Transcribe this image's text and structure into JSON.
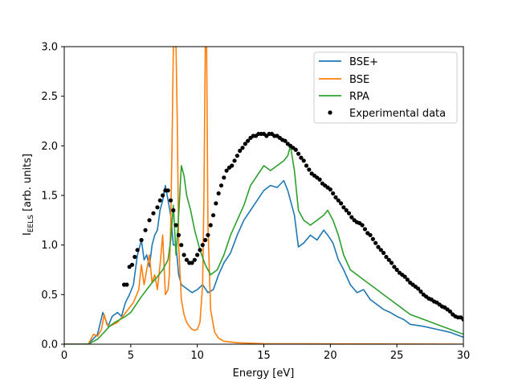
{
  "chart_data": {
    "type": "line",
    "xlabel": "Energy [eV]",
    "ylabel_main": "I",
    "ylabel_sub": "EELS",
    "ylabel_rest": " [arb. units]",
    "xlim": [
      0,
      30
    ],
    "ylim": [
      0,
      3.0
    ],
    "x_ticks": [
      0,
      5,
      10,
      15,
      20,
      25,
      30
    ],
    "x_tick_labels": [
      "0",
      "5",
      "10",
      "15",
      "20",
      "25",
      "30"
    ],
    "y_ticks": [
      0,
      0.5,
      1.0,
      1.5,
      2.0,
      2.5,
      3.0
    ],
    "y_tick_labels": [
      "0.0",
      "0.5",
      "1.0",
      "1.5",
      "2.0",
      "2.5",
      "3.0"
    ],
    "grid": false,
    "legend_position": "top-right",
    "series": [
      {
        "name": "BSE+",
        "style": "line",
        "color": "#1f77b4",
        "x": [
          0,
          1.8,
          2.5,
          2.9,
          3.1,
          3.3,
          3.6,
          4.0,
          4.3,
          4.6,
          4.9,
          5.2,
          5.5,
          5.8,
          6.0,
          6.2,
          6.4,
          6.6,
          6.8,
          7.0,
          7.2,
          7.4,
          7.6,
          7.8,
          8.0,
          8.2,
          8.4,
          8.6,
          8.8,
          9.0,
          9.3,
          9.6,
          10.0,
          10.4,
          10.8,
          11.2,
          11.6,
          12.0,
          12.5,
          13.0,
          13.5,
          14.0,
          14.5,
          15.0,
          15.5,
          16.0,
          16.5,
          16.8,
          17.0,
          17.3,
          17.6,
          18.0,
          18.5,
          19.0,
          19.5,
          19.8,
          20.2,
          20.6,
          21.0,
          21.5,
          22.0,
          22.5,
          23.0,
          23.5,
          24.0,
          24.5,
          25.0,
          25.5,
          26.0,
          27.0,
          28.0,
          29.0,
          30.0
        ],
        "y": [
          0,
          0,
          0.1,
          0.32,
          0.25,
          0.18,
          0.28,
          0.32,
          0.28,
          0.42,
          0.5,
          0.6,
          0.9,
          1.05,
          0.85,
          0.9,
          0.78,
          1.0,
          1.1,
          1.15,
          1.35,
          1.45,
          1.6,
          1.45,
          1.3,
          1.0,
          1.0,
          0.7,
          0.6,
          0.58,
          0.55,
          0.52,
          0.55,
          0.6,
          0.52,
          0.55,
          0.7,
          0.82,
          0.92,
          1.1,
          1.25,
          1.35,
          1.45,
          1.55,
          1.6,
          1.58,
          1.65,
          1.55,
          1.45,
          1.3,
          0.98,
          1.02,
          1.1,
          1.05,
          1.15,
          1.1,
          1.02,
          0.85,
          0.75,
          0.6,
          0.52,
          0.55,
          0.45,
          0.4,
          0.35,
          0.32,
          0.28,
          0.25,
          0.2,
          0.18,
          0.15,
          0.12,
          0.07
        ]
      },
      {
        "name": "BSE",
        "style": "line",
        "color": "#ff7f0e",
        "x": [
          0,
          1.8,
          2.2,
          2.5,
          2.8,
          3.0,
          3.2,
          3.4,
          3.7,
          4.0,
          4.4,
          4.8,
          5.2,
          5.6,
          5.8,
          6.0,
          6.2,
          6.4,
          6.6,
          6.8,
          7.0,
          7.2,
          7.4,
          7.6,
          7.8,
          7.9,
          8.0,
          8.1,
          8.2,
          8.3,
          8.4,
          8.5,
          8.6,
          8.8,
          9.0,
          9.2,
          9.4,
          9.6,
          9.8,
          10.0,
          10.2,
          10.4,
          10.5,
          10.6,
          10.7,
          10.8,
          11.0,
          11.3,
          11.6,
          12.0,
          13.0,
          14.0,
          15.0,
          30.0
        ],
        "y": [
          0,
          0,
          0.1,
          0.08,
          0.15,
          0.3,
          0.2,
          0.18,
          0.2,
          0.22,
          0.28,
          0.35,
          0.42,
          0.55,
          0.8,
          0.6,
          0.75,
          0.9,
          0.62,
          0.7,
          0.55,
          0.8,
          1.1,
          0.5,
          0.55,
          0.7,
          1.2,
          2.0,
          3.0,
          3.0,
          3.0,
          2.2,
          1.0,
          0.45,
          0.3,
          0.22,
          0.18,
          0.15,
          0.14,
          0.15,
          0.22,
          0.6,
          1.5,
          3.0,
          3.0,
          1.2,
          0.35,
          0.12,
          0.06,
          0.03,
          0.015,
          0.01,
          0.005,
          0.0
        ]
      },
      {
        "name": "RPA",
        "style": "line",
        "color": "#2ca02c",
        "x": [
          0,
          1.8,
          2.5,
          3.0,
          3.4,
          3.8,
          4.2,
          4.6,
          5.0,
          5.4,
          5.8,
          6.2,
          6.6,
          7.0,
          7.4,
          7.8,
          8.0,
          8.2,
          8.4,
          8.6,
          8.8,
          9.0,
          9.2,
          9.5,
          9.8,
          10.2,
          10.6,
          11.0,
          11.5,
          12.0,
          12.5,
          13.0,
          13.5,
          14.0,
          14.5,
          15.0,
          15.5,
          16.0,
          16.5,
          16.8,
          17.0,
          17.3,
          17.6,
          18.0,
          18.5,
          19.0,
          19.5,
          19.8,
          20.2,
          20.6,
          21.0,
          21.5,
          22.0,
          22.5,
          23.0,
          23.5,
          24.0,
          24.5,
          25.0,
          25.5,
          26.0,
          27.0,
          28.0,
          29.0,
          30.0
        ],
        "y": [
          0,
          0,
          0.05,
          0.12,
          0.18,
          0.22,
          0.25,
          0.28,
          0.32,
          0.4,
          0.48,
          0.55,
          0.62,
          0.68,
          0.75,
          0.85,
          1.05,
          1.4,
          0.9,
          1.3,
          1.8,
          1.7,
          1.5,
          1.35,
          1.15,
          0.95,
          0.8,
          0.7,
          0.75,
          0.9,
          1.1,
          1.25,
          1.4,
          1.6,
          1.7,
          1.8,
          1.75,
          1.8,
          1.85,
          1.9,
          2.0,
          1.75,
          1.35,
          1.25,
          1.2,
          1.25,
          1.3,
          1.35,
          1.25,
          1.1,
          0.9,
          0.75,
          0.7,
          0.65,
          0.6,
          0.55,
          0.5,
          0.45,
          0.4,
          0.35,
          0.3,
          0.25,
          0.2,
          0.15,
          0.1
        ]
      },
      {
        "name": "Experimental data",
        "style": "markers",
        "color": "#000000",
        "x": [
          4.5,
          4.7,
          4.9,
          5.1,
          5.3,
          5.5,
          5.8,
          6.1,
          6.4,
          6.7,
          7.0,
          7.2,
          7.4,
          7.6,
          7.8,
          8.0,
          8.2,
          8.4,
          8.6,
          8.8,
          9.0,
          9.2,
          9.4,
          9.6,
          9.8,
          10.0,
          10.2,
          10.4,
          10.6,
          10.8,
          11.0,
          11.2,
          11.4,
          11.6,
          11.8,
          12.0,
          12.2,
          12.4,
          12.6,
          12.8,
          13.0,
          13.2,
          13.4,
          13.6,
          13.8,
          14.0,
          14.2,
          14.4,
          14.6,
          14.8,
          15.0,
          15.2,
          15.4,
          15.6,
          15.8,
          16.0,
          16.2,
          16.4,
          16.6,
          16.8,
          17.0,
          17.2,
          17.4,
          17.6,
          17.8,
          18.0,
          18.2,
          18.4,
          18.6,
          18.8,
          19.0,
          19.2,
          19.4,
          19.6,
          19.8,
          20.0,
          20.2,
          20.4,
          20.6,
          20.8,
          21.0,
          21.2,
          21.4,
          21.6,
          21.8,
          22.0,
          22.2,
          22.4,
          22.6,
          22.8,
          23.0,
          23.2,
          23.4,
          23.6,
          23.8,
          24.0,
          24.2,
          24.4,
          24.6,
          24.8,
          25.0,
          25.2,
          25.4,
          25.6,
          25.8,
          26.0,
          26.2,
          26.4,
          26.6,
          26.8,
          27.0,
          27.2,
          27.4,
          27.6,
          27.8,
          28.0,
          28.2,
          28.4,
          28.6,
          28.8,
          29.0,
          29.2,
          29.4,
          29.6,
          29.8,
          30.0
        ],
        "y": [
          0.6,
          0.6,
          0.78,
          0.8,
          0.88,
          0.95,
          1.05,
          1.15,
          1.25,
          1.32,
          1.38,
          1.45,
          1.5,
          1.55,
          1.55,
          1.45,
          1.35,
          1.2,
          1.1,
          1.0,
          0.9,
          0.85,
          0.82,
          0.82,
          0.85,
          0.9,
          0.95,
          1.0,
          1.05,
          1.1,
          1.2,
          1.3,
          1.42,
          1.52,
          1.6,
          1.68,
          1.75,
          1.78,
          1.8,
          1.85,
          1.9,
          1.95,
          1.98,
          2.02,
          2.05,
          2.08,
          2.1,
          2.1,
          2.12,
          2.12,
          2.12,
          2.1,
          2.12,
          2.12,
          2.1,
          2.1,
          2.08,
          2.06,
          2.05,
          2.02,
          2.0,
          1.98,
          1.96,
          1.92,
          1.88,
          1.85,
          1.8,
          1.76,
          1.72,
          1.7,
          1.68,
          1.66,
          1.62,
          1.6,
          1.58,
          1.56,
          1.52,
          1.48,
          1.45,
          1.42,
          1.38,
          1.35,
          1.32,
          1.28,
          1.25,
          1.23,
          1.22,
          1.2,
          1.16,
          1.12,
          1.1,
          1.06,
          1.02,
          0.98,
          0.95,
          0.92,
          0.88,
          0.85,
          0.82,
          0.78,
          0.75,
          0.72,
          0.7,
          0.68,
          0.65,
          0.62,
          0.6,
          0.58,
          0.56,
          0.53,
          0.5,
          0.48,
          0.46,
          0.45,
          0.43,
          0.42,
          0.4,
          0.38,
          0.37,
          0.35,
          0.33,
          0.3,
          0.28,
          0.27,
          0.27,
          0.25
        ]
      }
    ]
  }
}
